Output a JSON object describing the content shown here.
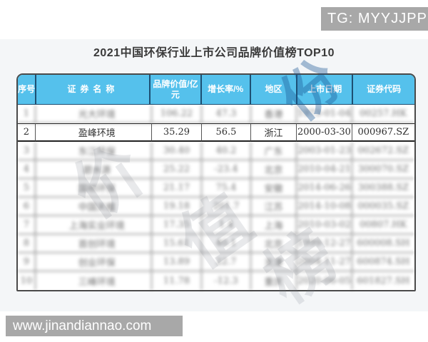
{
  "badges": {
    "tg": "TG: MYYJJPP",
    "site": "www.jinandiannao.com"
  },
  "title": "2021中国环保行业上市公司品牌价值榜TOP10",
  "watermarks": {
    "header_glyph": "份",
    "body_glyph_1": "价",
    "body_glyph_2": "值",
    "body_glyph_3": "榜"
  },
  "colors": {
    "header_bg": "#55c1ec",
    "header_divider": "#1d4f72",
    "table_border": "#4a4a4a",
    "badge_bg": "#a8a8a8",
    "panel_bg": "#f4f6f8"
  },
  "table": {
    "headers": {
      "rank": "序号",
      "name": "证券名称",
      "value": "品牌价值/亿元",
      "growth": "增长率/%",
      "region": "地区",
      "date": "上市日期",
      "code": "证券代码"
    },
    "rows": [
      {
        "rank": "1",
        "name": "光大环境",
        "value": "106.22",
        "growth": "47.3",
        "region": "香港",
        "date": "1973-01-04",
        "code": "00257.HK",
        "blurred": true
      },
      {
        "rank": "2",
        "name": "盈峰环境",
        "value": "35.29",
        "growth": "56.5",
        "region": "浙江",
        "date": "2000-03-30",
        "code": "000967.SZ",
        "blurred": false
      },
      {
        "rank": "3",
        "name": "东江环保",
        "value": "30.40",
        "growth": "40.2",
        "region": "广东",
        "date": "2003-01-23",
        "code": "002672.SZ",
        "blurred": true
      },
      {
        "rank": "4",
        "name": "碧水源",
        "value": "25.22",
        "growth": "-23.4",
        "region": "北京",
        "date": "2010-04-21",
        "code": "300070.SZ",
        "blurred": true
      },
      {
        "rank": "5",
        "name": "国祯环保",
        "value": "21.17",
        "growth": "75.4",
        "region": "安徽",
        "date": "2014-06-26",
        "code": "300388.SZ",
        "blurred": true
      },
      {
        "rank": "6",
        "name": "中国天楹",
        "value": "19.18",
        "growth": "201.7",
        "region": "江苏",
        "date": "2014-10-08",
        "code": "000035.SZ",
        "blurred": true
      },
      {
        "rank": "7",
        "name": "上海实业环境",
        "value": "17.35",
        "growth": "1.4",
        "region": "上海",
        "date": "2010-03-02",
        "code": "00807.HK",
        "blurred": true
      },
      {
        "rank": "8",
        "name": "首创环境",
        "value": "15.61",
        "growth": "40.1",
        "region": "北京",
        "date": "1999-12-27",
        "code": "600008.SH",
        "blurred": true
      },
      {
        "rank": "9",
        "name": "创业环保",
        "value": "13.89",
        "growth": "22.7",
        "region": "天津",
        "date": "2004-11-27",
        "code": "600874.SH",
        "blurred": true
      },
      {
        "rank": "10",
        "name": "三峰环境",
        "value": "11.78",
        "growth": "-12.3",
        "region": "重庆",
        "date": "2020-06-05",
        "code": "601827.SH",
        "blurred": true
      }
    ]
  }
}
